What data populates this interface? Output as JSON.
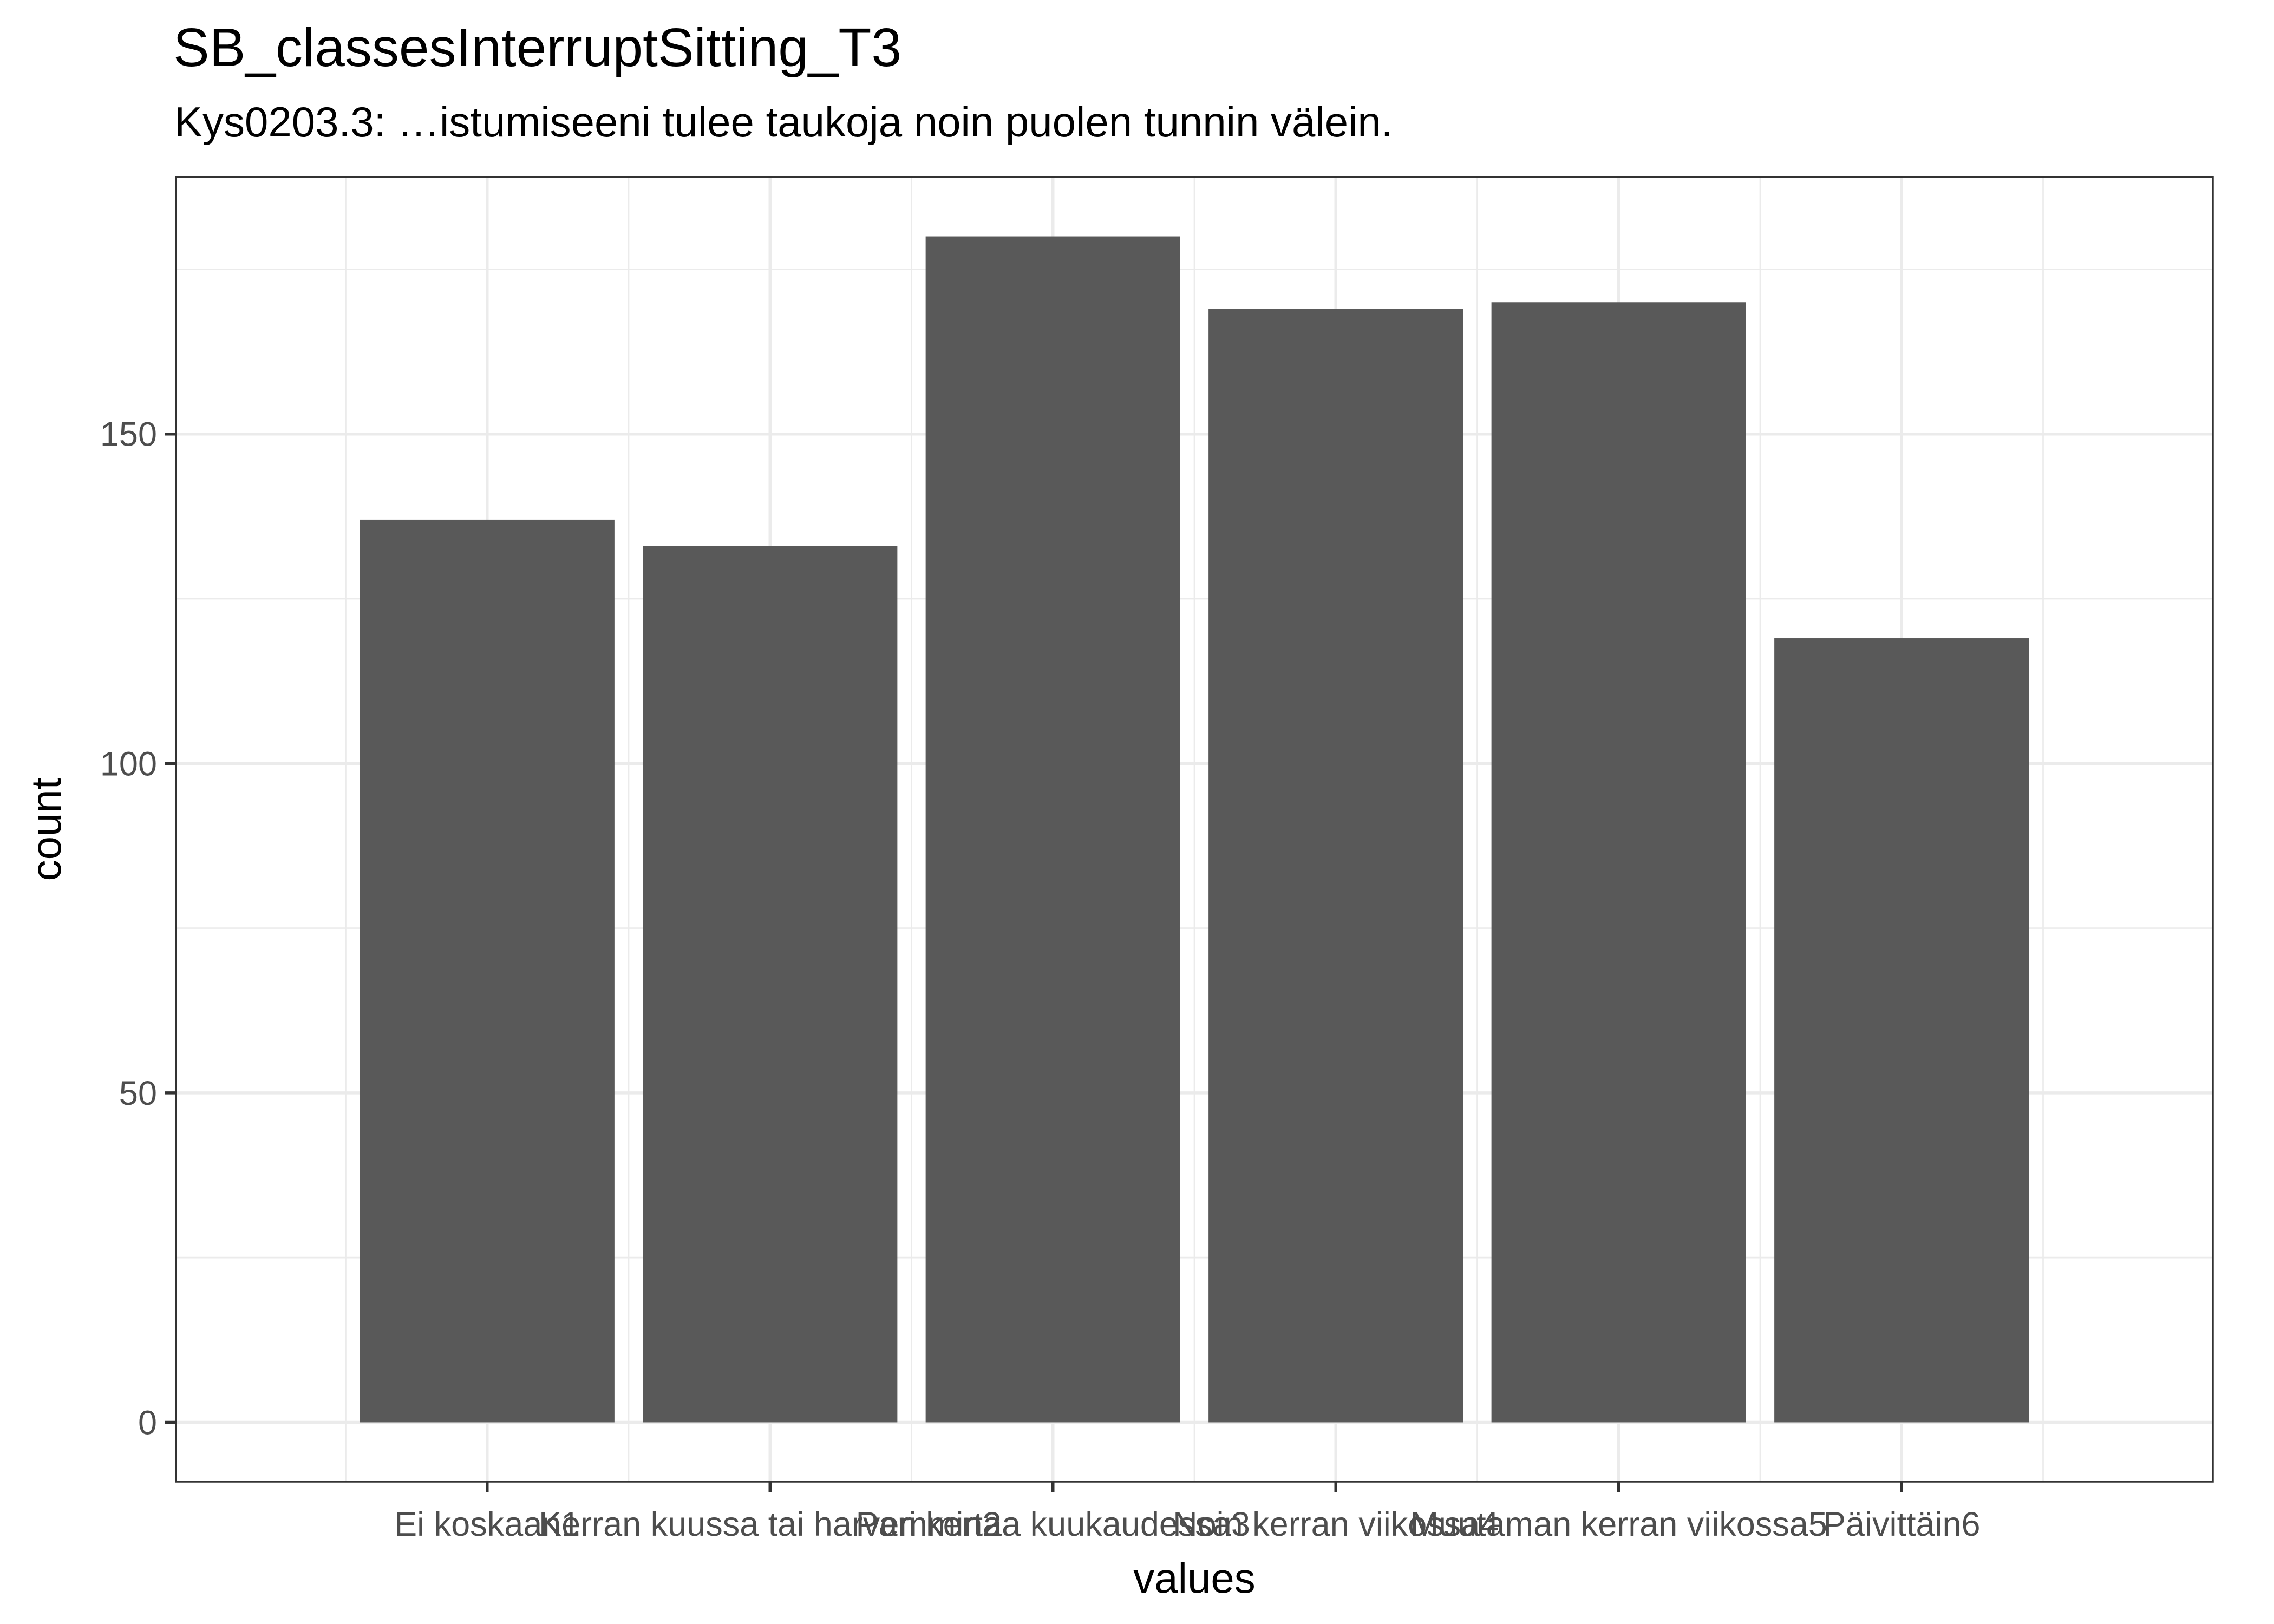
{
  "chart_data": {
    "type": "bar",
    "title": "SB_classesInterruptSitting_T3",
    "subtitle": "Kys0203.3: …istumiseeni tulee taukoja noin puolen tunnin välein.",
    "xlabel": "values",
    "ylabel": "count",
    "categories": [
      "Ei koskaan1",
      "Kerran kuussa tai harvemmin2",
      "Pari kertaa kuukaudessa3",
      "Noin kerran viikossa4",
      "Muutaman kerran viikossa5",
      "Päivittäin6"
    ],
    "values": [
      137,
      133,
      180,
      169,
      170,
      119
    ],
    "ylim": [
      -9,
      189
    ],
    "yticks": [
      0,
      50,
      100,
      150
    ],
    "ytick_labels": [
      "0",
      "50",
      "100",
      "150"
    ],
    "grid": true,
    "bar_color": "#595959"
  }
}
